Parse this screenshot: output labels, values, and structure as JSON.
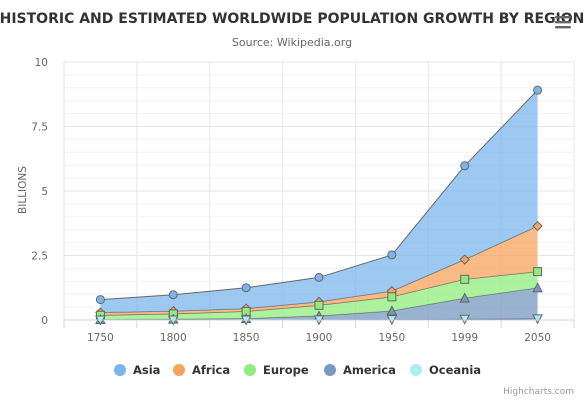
{
  "menu": {
    "icon": "hamburger-menu-icon"
  },
  "credits": "Highcharts.com",
  "chart_data": {
    "type": "area",
    "stacking": "normal",
    "title": "HISTORIC AND ESTIMATED WORLDWIDE POPULATION GROWTH BY REGION",
    "subtitle": "Source: Wikipedia.org",
    "xlabel": "",
    "ylabel": "BILLIONS",
    "categories": [
      "1750",
      "1800",
      "1850",
      "1900",
      "1950",
      "1999",
      "2050"
    ],
    "yticks": [
      "0",
      "2.5",
      "5",
      "7.5",
      "10"
    ],
    "ylim": [
      0,
      10
    ],
    "grid": true,
    "legend_position": "bottom",
    "series": [
      {
        "name": "Asia",
        "color": "#7cb5ec",
        "marker": "circle",
        "values": [
          0.502,
          0.635,
          0.809,
          0.947,
          1.402,
          3.634,
          5.268
        ]
      },
      {
        "name": "Africa",
        "color": "#f7a35c",
        "marker": "diamond",
        "values": [
          0.106,
          0.107,
          0.111,
          0.133,
          0.221,
          0.767,
          1.766
        ]
      },
      {
        "name": "Europe",
        "color": "#90ed7d",
        "marker": "square",
        "values": [
          0.163,
          0.203,
          0.276,
          0.408,
          0.547,
          0.729,
          0.628
        ]
      },
      {
        "name": "America",
        "color": "#7798bf",
        "marker": "triangle",
        "values": [
          0.018,
          0.031,
          0.054,
          0.156,
          0.339,
          0.818,
          1.201
        ]
      },
      {
        "name": "Oceania",
        "color": "#aaeeee",
        "marker": "triangle-down",
        "values": [
          0.002,
          0.002,
          0.002,
          0.006,
          0.013,
          0.03,
          0.046
        ]
      }
    ]
  }
}
